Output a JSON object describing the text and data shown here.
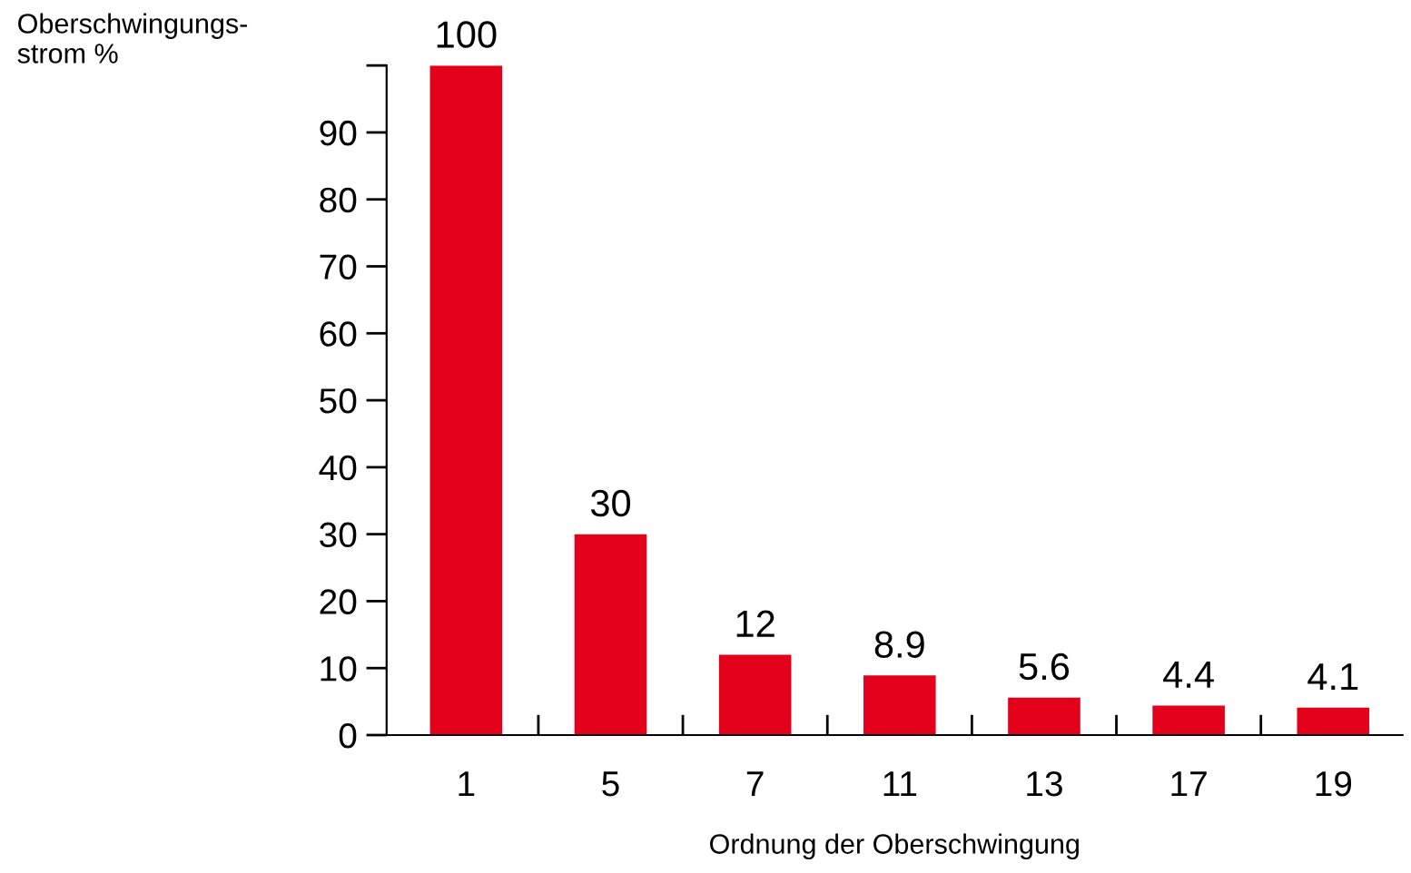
{
  "chart_data": {
    "type": "bar",
    "ylabel": "Oberschwingungs-\nstrom %",
    "xlabel": "Ordnung der Oberschwingung",
    "categories": [
      "1",
      "5",
      "7",
      "11",
      "13",
      "17",
      "19"
    ],
    "values": [
      100,
      30,
      12,
      8.9,
      5.6,
      4.4,
      4.1
    ],
    "color": "#e2001a",
    "ylim": [
      0,
      100
    ],
    "yticks": [
      0,
      10,
      20,
      30,
      40,
      50,
      60,
      70,
      80,
      90,
      {
        "value": 100,
        "label": null
      }
    ],
    "data_labels": true,
    "grid": false,
    "legend": false
  }
}
